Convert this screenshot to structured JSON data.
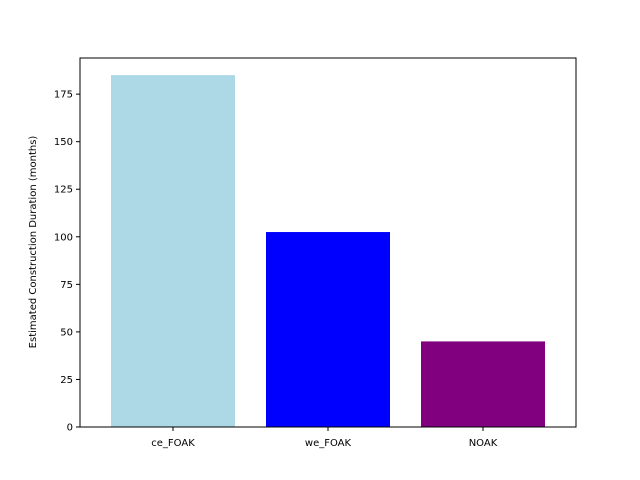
{
  "chart_data": {
    "type": "bar",
    "title": "",
    "xlabel": "",
    "ylabel": "Estimated Construction Duration (months)",
    "categories": [
      "ce_FOAK",
      "we_FOAK",
      "NOAK"
    ],
    "values": [
      185,
      102.5,
      45
    ],
    "colors": [
      "#add8e6",
      "#0000ff",
      "#800080"
    ],
    "ylim": [
      0,
      194
    ],
    "yticks": [
      0,
      25,
      50,
      75,
      100,
      125,
      150,
      175
    ],
    "grid": false,
    "legend": "none"
  }
}
